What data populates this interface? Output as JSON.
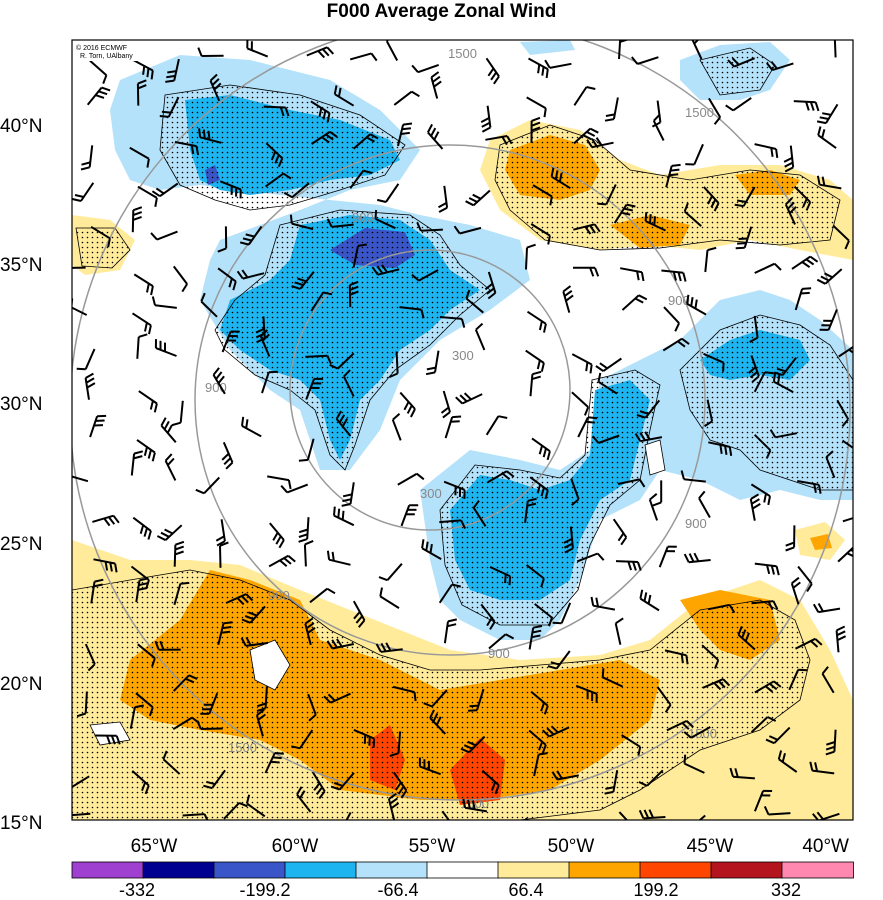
{
  "title": "F000 Average Zonal Wind",
  "credit": {
    "line1": "© 2016 ECMWF",
    "line2": "R. Torn, UAlbany"
  },
  "axes": {
    "lat_labels": [
      "40°N",
      "35°N",
      "30°N",
      "25°N",
      "20°N",
      "15°N"
    ],
    "lon_labels": [
      "65°W",
      "60°W",
      "55°W",
      "50°W",
      "45°W",
      "40°W"
    ]
  },
  "contour_labels": [
    "1500",
    "1500",
    "900",
    "900",
    "900",
    "900",
    "300",
    "900",
    "1500",
    "1500",
    "1500",
    "300",
    "900"
  ],
  "colorbar": {
    "tick_labels": [
      "-332",
      "-199.2",
      "-66.4",
      "66.4",
      "199.2",
      "332"
    ],
    "colors": [
      "#a040d0",
      "#000090",
      "#3a55c8",
      "#1eb4f0",
      "#b4e2fa",
      "#ffffff",
      "#ffeb9a",
      "#ffa500",
      "#ff4500",
      "#b4141e",
      "#ff88b0"
    ]
  },
  "chart_data": {
    "type": "map",
    "title": "F000 Average Zonal Wind",
    "lat_range": [
      15,
      43
    ],
    "lon_range": [
      -68,
      -40
    ],
    "fields": {
      "shaded": "zonal wind anomaly",
      "contours": [
        300,
        900,
        1500
      ],
      "stipple": "significance",
      "barbs": "wind"
    },
    "negative_regions_lonlat": [
      [
        [
          -65,
          41
        ],
        [
          -62,
          41
        ],
        [
          -58,
          38.5
        ],
        [
          -61,
          38
        ],
        [
          -63,
          37
        ],
        [
          -65,
          39
        ]
      ],
      [
        [
          -59,
          35.5
        ],
        [
          -54,
          35
        ],
        [
          -53,
          33
        ],
        [
          -54,
          31
        ],
        [
          -56,
          28
        ],
        [
          -58,
          29
        ],
        [
          -61,
          31
        ],
        [
          -61,
          33
        ]
      ],
      [
        [
          -53,
          28
        ],
        [
          -51,
          29
        ],
        [
          -49,
          28
        ],
        [
          -47,
          28
        ],
        [
          -46,
          30
        ],
        [
          -48,
          31
        ],
        [
          -49,
          25
        ],
        [
          -52,
          23
        ],
        [
          -54,
          24
        ],
        [
          -55,
          26
        ]
      ],
      [
        [
          -49,
          31
        ],
        [
          -46,
          32
        ],
        [
          -43,
          33
        ],
        [
          -42,
          31
        ],
        [
          -43,
          28
        ],
        [
          -46,
          29
        ],
        [
          -48,
          30
        ]
      ]
    ],
    "positive_regions_lonlat": [
      [
        [
          -65,
          23
        ],
        [
          -60,
          22
        ],
        [
          -56,
          20
        ],
        [
          -52,
          20
        ],
        [
          -48,
          20
        ],
        [
          -46,
          18
        ],
        [
          -50,
          16
        ],
        [
          -54,
          15
        ],
        [
          -58,
          15.5
        ],
        [
          -62,
          17
        ],
        [
          -66,
          19
        ]
      ],
      [
        [
          -48,
          24
        ],
        [
          -44,
          24
        ],
        [
          -42,
          22
        ],
        [
          -44,
          20
        ],
        [
          -47,
          20
        ],
        [
          -48,
          22
        ]
      ],
      [
        [
          -53,
          39
        ],
        [
          -50,
          39
        ],
        [
          -48,
          37
        ],
        [
          -44,
          37
        ],
        [
          -41,
          37
        ],
        [
          -41,
          35
        ],
        [
          -45,
          35
        ],
        [
          -50,
          36
        ],
        [
          -52,
          37
        ]
      ]
    ]
  }
}
